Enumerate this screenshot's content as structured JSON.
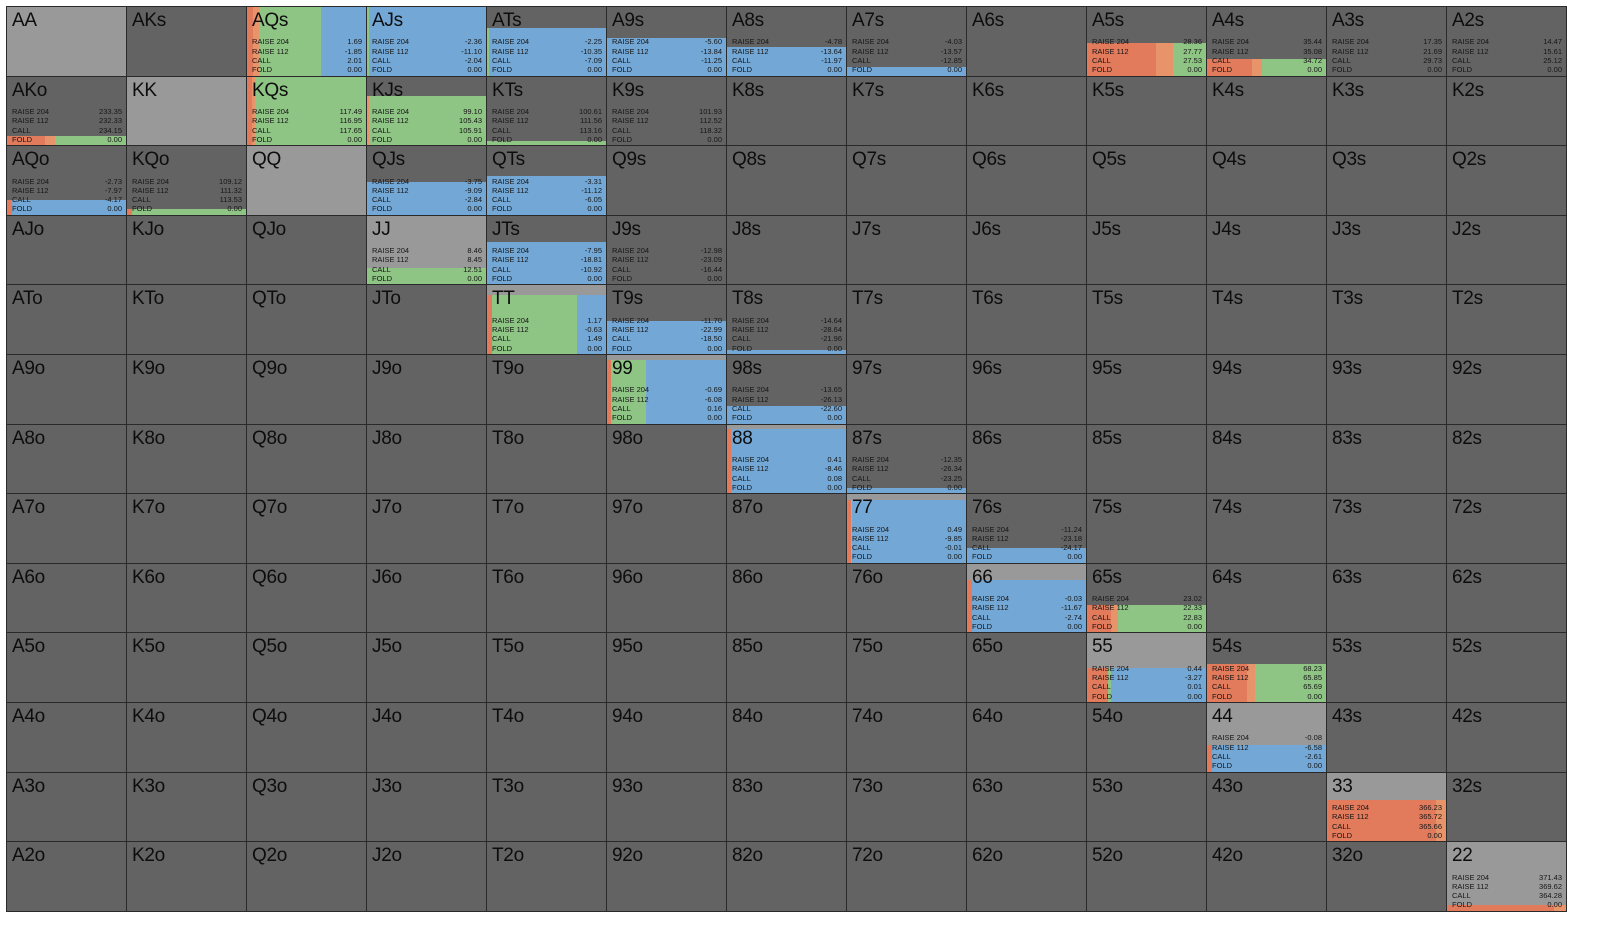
{
  "colors": {
    "raise_big": "#e27a5c",
    "raise_small": "#e8946a",
    "call": "#8ec484",
    "fold": "#73a8d6",
    "cell_dark": "#636363",
    "cell_light": "#999999"
  },
  "labels": [
    "RAISE 204",
    "RAISE 112",
    "CALL",
    "FOLD"
  ],
  "rows": [
    [
      {
        "hand": "AA",
        "light": true
      },
      {
        "hand": "AKs"
      },
      {
        "hand": "AQs",
        "light": true,
        "vals": [
          "1.69",
          "-1.85",
          "2.01",
          "0.00"
        ],
        "freq": [
          0.05,
          0.05,
          0.52,
          0.38
        ],
        "h": 1
      },
      {
        "hand": "AJs",
        "light": true,
        "vals": [
          "-2.36",
          "-11.10",
          "-2.04",
          "0.00"
        ],
        "freq": [
          0,
          0,
          0.02,
          0.98
        ],
        "h": 1
      },
      {
        "hand": "ATs",
        "vals": [
          "-2.25",
          "-10.35",
          "-7.09",
          "0.00"
        ],
        "freq": [
          0,
          0,
          0.02,
          0.98
        ],
        "h": 0.7
      },
      {
        "hand": "A9s",
        "vals": [
          "-5.60",
          "-13.84",
          "-11.25",
          "0.00"
        ],
        "freq": [
          0,
          0,
          0,
          1
        ],
        "h": 0.55
      },
      {
        "hand": "A8s",
        "vals": [
          "-4.78",
          "-13.64",
          "-11.97",
          "0.00"
        ],
        "freq": [
          0,
          0,
          0,
          1
        ],
        "h": 0.42
      },
      {
        "hand": "A7s",
        "vals": [
          "-4.03",
          "-13.57",
          "-12.85",
          "0.00"
        ],
        "freq": [
          0,
          0,
          0,
          1
        ],
        "h": 0.12
      },
      {
        "hand": "A6s"
      },
      {
        "hand": "A5s",
        "vals": [
          "28.36",
          "27.77",
          "27.53",
          "0.00"
        ],
        "freq": [
          0.58,
          0.14,
          0.28,
          0
        ],
        "h": 0.48
      },
      {
        "hand": "A4s",
        "vals": [
          "35.44",
          "35.08",
          "34.72",
          "0.00"
        ],
        "freq": [
          0.38,
          0.08,
          0.54,
          0
        ],
        "h": 0.24
      },
      {
        "hand": "A3s",
        "vals": [
          "17.35",
          "21.69",
          "29.73",
          "0.00"
        ],
        "freq": [
          0,
          0,
          1,
          0
        ],
        "h": 0
      },
      {
        "hand": "A2s",
        "vals": [
          "14.47",
          "15.61",
          "25.12",
          "0.00"
        ],
        "freq": [
          0,
          0,
          1,
          0
        ],
        "h": 0
      }
    ],
    [
      {
        "hand": "AKo",
        "vals": [
          "233.35",
          "232.33",
          "234.15",
          "0.00"
        ],
        "freq": [
          0.32,
          0.08,
          0.6,
          0
        ],
        "h": 0.14
      },
      {
        "hand": "KK",
        "light": true
      },
      {
        "hand": "KQs",
        "light": true,
        "vals": [
          "117.49",
          "116.95",
          "117.65",
          "0.00"
        ],
        "freq": [
          0.04,
          0.03,
          0.93,
          0
        ],
        "h": 1
      },
      {
        "hand": "KJs",
        "vals": [
          "99.10",
          "105.43",
          "105.91",
          "0.00"
        ],
        "freq": [
          0,
          0.02,
          0.98,
          0
        ],
        "h": 0.72
      },
      {
        "hand": "KTs",
        "vals": [
          "100.61",
          "111.56",
          "113.16",
          "0.00"
        ],
        "freq": [
          0,
          0,
          1,
          0
        ],
        "h": 0.06
      },
      {
        "hand": "K9s",
        "vals": [
          "101.93",
          "112.52",
          "118.32",
          "0.00"
        ],
        "freq": [
          0,
          0,
          1,
          0
        ],
        "h": 0
      },
      {
        "hand": "K8s"
      },
      {
        "hand": "K7s"
      },
      {
        "hand": "K6s"
      },
      {
        "hand": "K5s"
      },
      {
        "hand": "K4s"
      },
      {
        "hand": "K3s"
      },
      {
        "hand": "K2s"
      }
    ],
    [
      {
        "hand": "AQo",
        "vals": [
          "-2.73",
          "-7.97",
          "-4.17",
          "0.00"
        ],
        "freq": [
          0.04,
          0,
          0,
          0.96
        ],
        "h": 0.22
      },
      {
        "hand": "KQo",
        "vals": [
          "109.12",
          "111.32",
          "113.53",
          "0.00"
        ],
        "freq": [
          0.04,
          0,
          0.96,
          0
        ],
        "h": 0.08
      },
      {
        "hand": "QQ",
        "light": true
      },
      {
        "hand": "QJs",
        "vals": [
          "-3.75",
          "-9.09",
          "-2.84",
          "0.00"
        ],
        "freq": [
          0,
          0,
          0,
          1
        ],
        "h": 0.48
      },
      {
        "hand": "QTs",
        "vals": [
          "-3.31",
          "-11.12",
          "-6.05",
          "0.00"
        ],
        "freq": [
          0,
          0,
          0,
          1
        ],
        "h": 0.56
      },
      {
        "hand": "Q9s"
      },
      {
        "hand": "Q8s"
      },
      {
        "hand": "Q7s"
      },
      {
        "hand": "Q6s"
      },
      {
        "hand": "Q5s"
      },
      {
        "hand": "Q4s"
      },
      {
        "hand": "Q3s"
      },
      {
        "hand": "Q2s"
      }
    ],
    [
      {
        "hand": "AJo"
      },
      {
        "hand": "KJo"
      },
      {
        "hand": "QJo"
      },
      {
        "hand": "JJ",
        "light": true,
        "vals": [
          "8.46",
          "8.45",
          "12.51",
          "0.00"
        ],
        "freq": [
          0,
          0,
          1,
          0
        ],
        "h": 0.24
      },
      {
        "hand": "JTs",
        "vals": [
          "-7.95",
          "-18.81",
          "-10.92",
          "0.00"
        ],
        "freq": [
          0,
          0,
          0,
          1
        ],
        "h": 0.62
      },
      {
        "hand": "J9s",
        "vals": [
          "-12.98",
          "-23.09",
          "-16.44",
          "0.00"
        ],
        "freq": [
          0,
          0,
          0,
          1
        ],
        "h": 0
      },
      {
        "hand": "J8s"
      },
      {
        "hand": "J7s"
      },
      {
        "hand": "J6s"
      },
      {
        "hand": "J5s"
      },
      {
        "hand": "J4s"
      },
      {
        "hand": "J3s"
      },
      {
        "hand": "J2s"
      }
    ],
    [
      {
        "hand": "ATo"
      },
      {
        "hand": "KTo"
      },
      {
        "hand": "QTo"
      },
      {
        "hand": "JTo"
      },
      {
        "hand": "TT",
        "light": true,
        "vals": [
          "1.17",
          "-0.63",
          "1.49",
          "0.00"
        ],
        "freq": [
          0.04,
          0,
          0.72,
          0.24
        ],
        "h": 0.86
      },
      {
        "hand": "T9s",
        "vals": [
          "-11.70",
          "-22.99",
          "-18.50",
          "0.00"
        ],
        "freq": [
          0,
          0,
          0,
          1
        ],
        "h": 0.48
      },
      {
        "hand": "T8s",
        "vals": [
          "-14.64",
          "-28.64",
          "-21.96",
          "0.00"
        ],
        "freq": [
          0,
          0,
          0,
          1
        ],
        "h": 0.06
      },
      {
        "hand": "T7s"
      },
      {
        "hand": "T6s"
      },
      {
        "hand": "T5s"
      },
      {
        "hand": "T4s"
      },
      {
        "hand": "T3s"
      },
      {
        "hand": "T2s"
      }
    ],
    [
      {
        "hand": "A9o"
      },
      {
        "hand": "K9o"
      },
      {
        "hand": "Q9o"
      },
      {
        "hand": "J9o"
      },
      {
        "hand": "T9o"
      },
      {
        "hand": "99",
        "light": true,
        "vals": [
          "-0.69",
          "-6.08",
          "0.16",
          "0.00"
        ],
        "freq": [
          0.03,
          0,
          0.3,
          0.67
        ],
        "h": 0.92
      },
      {
        "hand": "98s",
        "vals": [
          "-13.65",
          "-26.13",
          "-22.60",
          "0.00"
        ],
        "freq": [
          0,
          0,
          0,
          1
        ],
        "h": 0.26
      },
      {
        "hand": "97s"
      },
      {
        "hand": "96s"
      },
      {
        "hand": "95s"
      },
      {
        "hand": "94s"
      },
      {
        "hand": "93s"
      },
      {
        "hand": "92s"
      }
    ],
    [
      {
        "hand": "A8o"
      },
      {
        "hand": "K8o"
      },
      {
        "hand": "Q8o"
      },
      {
        "hand": "J8o"
      },
      {
        "hand": "T8o"
      },
      {
        "hand": "98o"
      },
      {
        "hand": "88",
        "light": true,
        "vals": [
          "0.41",
          "-8.46",
          "0.08",
          "0.00"
        ],
        "freq": [
          0.03,
          0,
          0,
          0.97
        ],
        "h": 0.94
      },
      {
        "hand": "87s",
        "vals": [
          "-12.35",
          "-26.34",
          "-23.25",
          "0.00"
        ],
        "freq": [
          0,
          0,
          0,
          1
        ],
        "h": 0.08
      },
      {
        "hand": "86s"
      },
      {
        "hand": "85s"
      },
      {
        "hand": "84s"
      },
      {
        "hand": "83s"
      },
      {
        "hand": "82s"
      }
    ],
    [
      {
        "hand": "A7o"
      },
      {
        "hand": "K7o"
      },
      {
        "hand": "Q7o"
      },
      {
        "hand": "J7o"
      },
      {
        "hand": "T7o"
      },
      {
        "hand": "97o"
      },
      {
        "hand": "87o"
      },
      {
        "hand": "77",
        "light": true,
        "vals": [
          "0.49",
          "-9.85",
          "-0.01",
          "0.00"
        ],
        "freq": [
          0.03,
          0,
          0.01,
          0.96
        ],
        "h": 0.92
      },
      {
        "hand": "76s",
        "vals": [
          "-11.24",
          "-23.18",
          "-24.17",
          "0.00"
        ],
        "freq": [
          0,
          0,
          0,
          1
        ],
        "h": 0.22
      },
      {
        "hand": "75s"
      },
      {
        "hand": "74s"
      },
      {
        "hand": "73s"
      },
      {
        "hand": "72s"
      }
    ],
    [
      {
        "hand": "A6o"
      },
      {
        "hand": "K6o"
      },
      {
        "hand": "Q6o"
      },
      {
        "hand": "J6o"
      },
      {
        "hand": "T6o"
      },
      {
        "hand": "96o"
      },
      {
        "hand": "86o"
      },
      {
        "hand": "76o"
      },
      {
        "hand": "66",
        "light": true,
        "vals": [
          "-0.03",
          "-11.67",
          "-2.74",
          "0.00"
        ],
        "freq": [
          0.04,
          0,
          0,
          0.96
        ],
        "h": 0.76
      },
      {
        "hand": "65s",
        "vals": [
          "23.02",
          "22.33",
          "22.83",
          "0.00"
        ],
        "freq": [
          0.2,
          0.06,
          0.74,
          0
        ],
        "h": 0.4
      },
      {
        "hand": "64s"
      },
      {
        "hand": "63s"
      },
      {
        "hand": "62s"
      }
    ],
    [
      {
        "hand": "A5o"
      },
      {
        "hand": "K5o"
      },
      {
        "hand": "Q5o"
      },
      {
        "hand": "J5o"
      },
      {
        "hand": "T5o"
      },
      {
        "hand": "95o"
      },
      {
        "hand": "85o"
      },
      {
        "hand": "75o"
      },
      {
        "hand": "65o"
      },
      {
        "hand": "55",
        "light": true,
        "vals": [
          "0.44",
          "-3.27",
          "0.01",
          "0.00"
        ],
        "freq": [
          0.18,
          0,
          0.02,
          0.8
        ],
        "h": 0.5
      },
      {
        "hand": "54s",
        "vals": [
          "68.23",
          "65.85",
          "65.69",
          "0.00"
        ],
        "freq": [
          0.34,
          0.06,
          0.6,
          0
        ],
        "h": 0.56
      },
      {
        "hand": "53s"
      },
      {
        "hand": "52s"
      }
    ],
    [
      {
        "hand": "A4o"
      },
      {
        "hand": "K4o"
      },
      {
        "hand": "Q4o"
      },
      {
        "hand": "J4o"
      },
      {
        "hand": "T4o"
      },
      {
        "hand": "94o"
      },
      {
        "hand": "84o"
      },
      {
        "hand": "74o"
      },
      {
        "hand": "64o"
      },
      {
        "hand": "54o"
      },
      {
        "hand": "44",
        "light": true,
        "vals": [
          "-0.08",
          "-6.58",
          "-2.61",
          "0.00"
        ],
        "freq": [
          0.04,
          0,
          0,
          0.96
        ],
        "h": 0.38
      },
      {
        "hand": "43s"
      },
      {
        "hand": "42s"
      }
    ],
    [
      {
        "hand": "A3o"
      },
      {
        "hand": "K3o"
      },
      {
        "hand": "Q3o"
      },
      {
        "hand": "J3o"
      },
      {
        "hand": "T3o"
      },
      {
        "hand": "93o"
      },
      {
        "hand": "83o"
      },
      {
        "hand": "73o"
      },
      {
        "hand": "63o"
      },
      {
        "hand": "53o"
      },
      {
        "hand": "43o"
      },
      {
        "hand": "33",
        "light": true,
        "vals": [
          "366.23",
          "365.72",
          "365.66",
          "0.00"
        ],
        "freq": [
          0.92,
          0.08,
          0,
          0
        ],
        "h": 0.6
      },
      {
        "hand": "32s"
      }
    ],
    [
      {
        "hand": "A2o"
      },
      {
        "hand": "K2o"
      },
      {
        "hand": "Q2o"
      },
      {
        "hand": "J2o"
      },
      {
        "hand": "T2o"
      },
      {
        "hand": "92o"
      },
      {
        "hand": "82o"
      },
      {
        "hand": "72o"
      },
      {
        "hand": "62o"
      },
      {
        "hand": "52o"
      },
      {
        "hand": "42o"
      },
      {
        "hand": "32o"
      },
      {
        "hand": "22",
        "light": true,
        "vals": [
          "371.43",
          "369.62",
          "364.28",
          "0.00"
        ],
        "freq": [
          0.9,
          0.1,
          0,
          0
        ],
        "h": 0.08
      }
    ]
  ]
}
